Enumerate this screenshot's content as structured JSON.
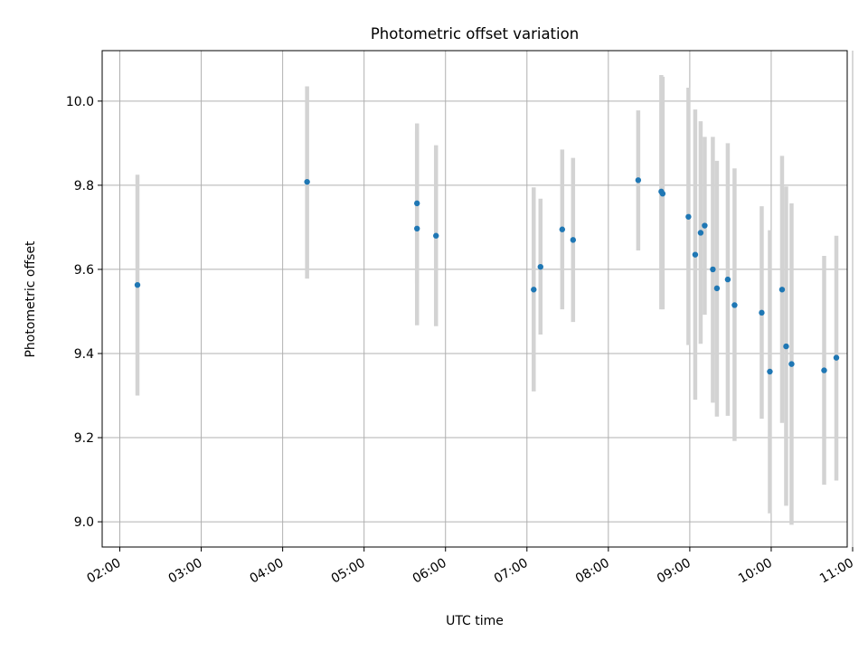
{
  "chart_data": {
    "type": "scatter",
    "title": "Photometric offset variation",
    "xlabel": "UTC time",
    "ylabel": "Photometric offset",
    "x_unit": "UTC time (HH:MM)",
    "xlim": [
      "01:47",
      "10:56"
    ],
    "ylim": [
      8.94,
      10.12
    ],
    "xticks": [
      "02:00",
      "03:00",
      "04:00",
      "05:00",
      "06:00",
      "07:00",
      "08:00",
      "09:00",
      "10:00",
      "11:00"
    ],
    "yticks": [
      "9.0",
      "9.2",
      "9.4",
      "9.6",
      "9.8",
      "10.0"
    ],
    "grid": true,
    "marker_color": "#1f77b4",
    "errorbar_color": "#d3d3d3",
    "points": [
      {
        "x": "02:13",
        "y": 9.563,
        "ylo": 9.3,
        "yhi": 9.825
      },
      {
        "x": "04:18",
        "y": 9.808,
        "ylo": 9.578,
        "yhi": 10.035
      },
      {
        "x": "05:39",
        "y": 9.757,
        "ylo": 9.567,
        "yhi": 9.947
      },
      {
        "x": "05:39",
        "y": 9.697,
        "ylo": 9.467,
        "yhi": 9.927
      },
      {
        "x": "05:53",
        "y": 9.68,
        "ylo": 9.465,
        "yhi": 9.895
      },
      {
        "x": "07:05",
        "y": 9.552,
        "ylo": 9.31,
        "yhi": 9.795
      },
      {
        "x": "07:10",
        "y": 9.606,
        "ylo": 9.445,
        "yhi": 9.768
      },
      {
        "x": "07:26",
        "y": 9.695,
        "ylo": 9.505,
        "yhi": 9.885
      },
      {
        "x": "07:34",
        "y": 9.67,
        "ylo": 9.475,
        "yhi": 9.865
      },
      {
        "x": "08:22",
        "y": 9.812,
        "ylo": 9.645,
        "yhi": 9.978
      },
      {
        "x": "08:39",
        "y": 9.785,
        "ylo": 9.505,
        "yhi": 10.062
      },
      {
        "x": "08:40",
        "y": 9.78,
        "ylo": 9.505,
        "yhi": 10.058
      },
      {
        "x": "08:59",
        "y": 9.725,
        "ylo": 9.42,
        "yhi": 10.032
      },
      {
        "x": "09:04",
        "y": 9.635,
        "ylo": 9.29,
        "yhi": 9.98
      },
      {
        "x": "09:08",
        "y": 9.687,
        "ylo": 9.423,
        "yhi": 9.952
      },
      {
        "x": "09:11",
        "y": 9.704,
        "ylo": 9.492,
        "yhi": 9.915
      },
      {
        "x": "09:17",
        "y": 9.6,
        "ylo": 9.283,
        "yhi": 9.915
      },
      {
        "x": "09:20",
        "y": 9.555,
        "ylo": 9.25,
        "yhi": 9.858
      },
      {
        "x": "09:28",
        "y": 9.576,
        "ylo": 9.252,
        "yhi": 9.9
      },
      {
        "x": "09:33",
        "y": 9.515,
        "ylo": 9.192,
        "yhi": 9.84
      },
      {
        "x": "09:53",
        "y": 9.497,
        "ylo": 9.245,
        "yhi": 9.75
      },
      {
        "x": "09:59",
        "y": 9.357,
        "ylo": 9.02,
        "yhi": 9.693
      },
      {
        "x": "10:08",
        "y": 9.552,
        "ylo": 9.235,
        "yhi": 9.87
      },
      {
        "x": "10:11",
        "y": 9.417,
        "ylo": 9.038,
        "yhi": 9.797
      },
      {
        "x": "10:15",
        "y": 9.375,
        "ylo": 8.993,
        "yhi": 9.757
      },
      {
        "x": "10:39",
        "y": 9.36,
        "ylo": 9.088,
        "yhi": 9.632
      },
      {
        "x": "10:48",
        "y": 9.39,
        "ylo": 9.098,
        "yhi": 9.68
      }
    ]
  }
}
